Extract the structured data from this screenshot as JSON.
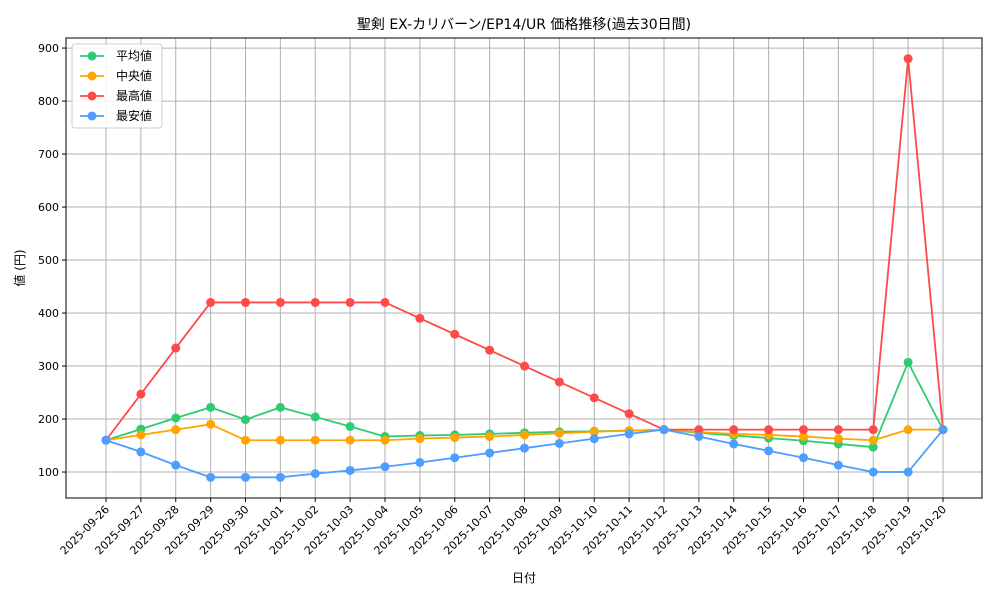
{
  "chart_data": {
    "type": "line",
    "title": "聖剣 EX-カリバーン/EP14/UR 価格推移(過去30日間)",
    "xlabel": "日付",
    "ylabel": "値 (円)",
    "ylim": [
      51,
      919
    ],
    "yticks": [
      100,
      200,
      300,
      400,
      500,
      600,
      700,
      800,
      900
    ],
    "grid": true,
    "legend_placement": "top-left",
    "x": [
      "2025-09-26",
      "2025-09-27",
      "2025-09-28",
      "2025-09-29",
      "2025-09-30",
      "2025-10-01",
      "2025-10-02",
      "2025-10-03",
      "2025-10-04",
      "2025-10-05",
      "2025-10-06",
      "2025-10-07",
      "2025-10-08",
      "2025-10-09",
      "2025-10-10",
      "2025-10-11",
      "2025-10-12",
      "2025-10-13",
      "2025-10-14",
      "2025-10-15",
      "2025-10-16",
      "2025-10-17",
      "2025-10-18",
      "2025-10-19",
      "2025-10-20"
    ],
    "series": [
      {
        "name": "平均値",
        "color": "#2ecc71",
        "values": [
          160,
          181,
          202,
          222,
          199,
          222,
          204,
          186,
          167,
          169,
          170,
          172,
          174,
          176,
          177,
          178,
          180,
          174,
          169,
          164,
          159,
          153,
          147,
          307,
          180
        ]
      },
      {
        "name": "中央値",
        "color": "#ffa500",
        "values": [
          160,
          170,
          180,
          190,
          160,
          160,
          160,
          160,
          160,
          163,
          165,
          167,
          170,
          173,
          176,
          178,
          180,
          175,
          172,
          170,
          167,
          163,
          160,
          180,
          180
        ]
      },
      {
        "name": "最高値",
        "color": "#ff4a4a",
        "values": [
          160,
          247,
          334,
          420,
          420,
          420,
          420,
          420,
          420,
          390,
          360,
          330,
          300,
          270,
          240,
          210,
          180,
          180,
          180,
          180,
          180,
          180,
          180,
          880,
          180
        ]
      },
      {
        "name": "最安値",
        "color": "#4d9eff",
        "values": [
          160,
          138,
          113,
          90,
          90,
          90,
          97,
          103,
          110,
          118,
          127,
          136,
          145,
          154,
          163,
          172,
          180,
          167,
          153,
          140,
          127,
          113,
          100,
          100,
          180
        ]
      }
    ]
  }
}
